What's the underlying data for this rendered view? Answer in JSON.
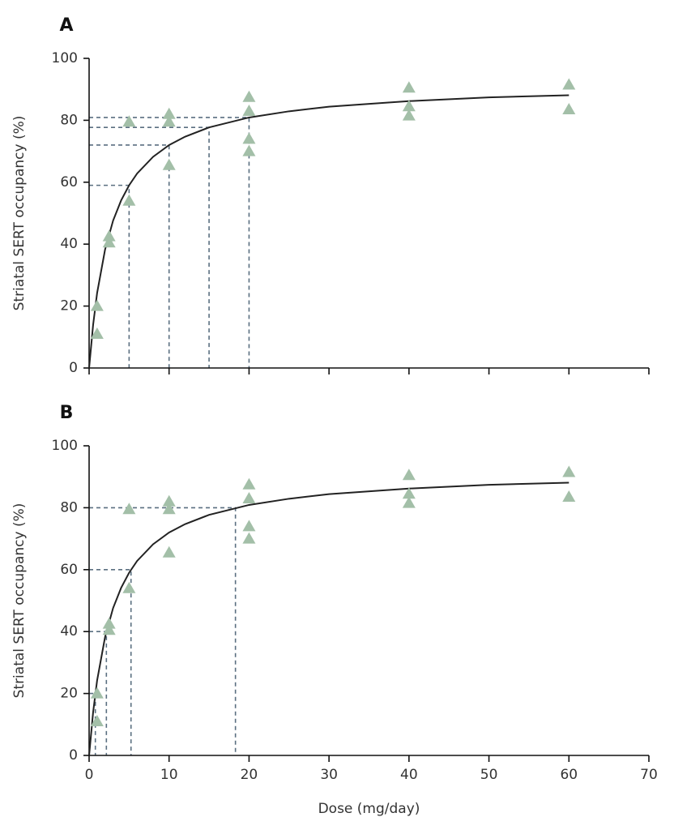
{
  "chart_data": [
    {
      "type": "scatter",
      "panel_label": "A",
      "ylabel": "Striatal SERT occupancy (%)",
      "xlim": [
        0,
        70
      ],
      "xticks": [
        0,
        10,
        20,
        30,
        40,
        50,
        60,
        70
      ],
      "xtick_labels": false,
      "ylim": [
        0,
        100
      ],
      "yticks": [
        0,
        20,
        40,
        60,
        80,
        100
      ],
      "points": {
        "color": "#a3bfa8",
        "x": [
          1,
          1,
          2.5,
          2.5,
          5,
          5,
          10,
          10,
          10,
          20,
          20,
          20,
          20,
          40,
          40,
          40,
          60,
          60
        ],
        "values": [
          20,
          11,
          42.5,
          40.5,
          79.5,
          54,
          82,
          79.5,
          65.5,
          87.5,
          83,
          74,
          70,
          90.5,
          84.5,
          81.5,
          91.5,
          83.5
        ]
      },
      "curve": {
        "color": "#222222",
        "x": [
          0,
          0.5,
          1,
          2,
          3,
          4,
          5,
          6,
          8,
          10,
          12,
          15,
          20,
          25,
          30,
          40,
          50,
          60
        ],
        "values": [
          0,
          13.9,
          24.2,
          38.3,
          47.6,
          54.1,
          59,
          62.8,
          68.2,
          72,
          74.7,
          77.7,
          80.9,
          82.9,
          84.4,
          86.2,
          87.4,
          88.1
        ]
      },
      "guides": {
        "color": "#5a6f80",
        "x": [
          5,
          10,
          15,
          20
        ],
        "values": [
          59,
          72,
          77.7,
          80.9
        ]
      }
    },
    {
      "type": "scatter",
      "panel_label": "B",
      "ylabel": "Striatal SERT occupancy (%)",
      "xlabel": "Dose (mg/day)",
      "xlim": [
        0,
        70
      ],
      "xticks": [
        0,
        10,
        20,
        30,
        40,
        50,
        60,
        70
      ],
      "xtick_labels": true,
      "ylim": [
        0,
        100
      ],
      "yticks": [
        0,
        20,
        40,
        60,
        80,
        100
      ],
      "points": {
        "color": "#a3bfa8",
        "x": [
          1,
          1,
          2.5,
          2.5,
          5,
          5,
          10,
          10,
          10,
          20,
          20,
          20,
          20,
          40,
          40,
          40,
          60,
          60
        ],
        "values": [
          20,
          11,
          42.5,
          40.5,
          79.5,
          54,
          82,
          79.5,
          65.5,
          87.5,
          83,
          74,
          70,
          90.5,
          84.5,
          81.5,
          91.5,
          83.5
        ]
      },
      "curve": {
        "color": "#222222",
        "x": [
          0,
          0.5,
          1,
          2,
          3,
          4,
          5,
          6,
          8,
          10,
          12,
          15,
          20,
          25,
          30,
          40,
          50,
          60
        ],
        "values": [
          0,
          13.9,
          24.2,
          38.3,
          47.6,
          54.1,
          59,
          62.8,
          68.2,
          72,
          74.7,
          77.7,
          80.9,
          82.9,
          84.4,
          86.2,
          87.4,
          88.1
        ]
      },
      "guides": {
        "color": "#5a6f80",
        "x": [
          0.78,
          2.16,
          5.24,
          18.3
        ],
        "values": [
          20,
          40,
          60,
          80
        ]
      }
    }
  ]
}
